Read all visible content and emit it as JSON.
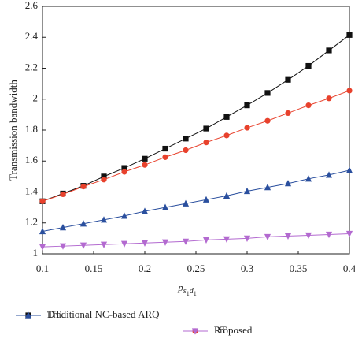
{
  "chart_data": {
    "type": "line",
    "y_label": "Transmission bandwidth",
    "x_label": {
      "main": "p",
      "sub": [
        {
          "text": "s",
          "sub": "1"
        },
        {
          "text": "d",
          "sub": "1"
        }
      ]
    },
    "x": [
      0.1,
      0.12,
      0.14,
      0.16,
      0.18,
      0.2,
      0.22,
      0.24,
      0.26,
      0.28,
      0.3,
      0.32,
      0.34,
      0.36,
      0.38,
      0.4
    ],
    "series": [
      {
        "name": "DT",
        "color": "#111111",
        "marker": "square",
        "values": [
          1.34,
          1.39,
          1.44,
          1.5,
          1.555,
          1.615,
          1.68,
          1.745,
          1.81,
          1.885,
          1.96,
          2.04,
          2.125,
          2.215,
          2.315,
          2.415
        ]
      },
      {
        "name": "RT",
        "color": "#e8412c",
        "marker": "circle",
        "values": [
          1.34,
          1.385,
          1.435,
          1.48,
          1.53,
          1.575,
          1.625,
          1.67,
          1.72,
          1.765,
          1.815,
          1.86,
          1.91,
          1.96,
          2.005,
          2.055
        ]
      },
      {
        "name": "Traditional NC-based ARQ",
        "color": "#2a4f9e",
        "marker": "triangle-up",
        "values": [
          1.145,
          1.17,
          1.195,
          1.22,
          1.245,
          1.275,
          1.3,
          1.325,
          1.35,
          1.375,
          1.405,
          1.43,
          1.455,
          1.485,
          1.51,
          1.54
        ]
      },
      {
        "name": "Proposed",
        "color": "#b36ad0",
        "marker": "triangle-down",
        "values": [
          1.045,
          1.05,
          1.055,
          1.06,
          1.065,
          1.07,
          1.075,
          1.08,
          1.09,
          1.095,
          1.1,
          1.11,
          1.115,
          1.12,
          1.125,
          1.13
        ]
      }
    ],
    "xlim": [
      0.1,
      0.4
    ],
    "xticks": [
      0.1,
      0.15,
      0.2,
      0.25,
      0.3,
      0.35,
      0.4
    ],
    "ylim": [
      1,
      2.6
    ],
    "yticks": [
      1,
      1.2,
      1.4,
      1.6,
      1.8,
      2,
      2.2,
      2.4,
      2.6
    ],
    "grid": false,
    "legend": "bottom"
  }
}
